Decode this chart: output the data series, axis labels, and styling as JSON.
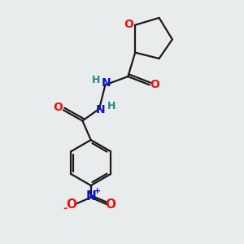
{
  "bg_color": "#e8ecec",
  "bond_color": "#1a1a1a",
  "O_color": "#ee1111",
  "N_color": "#1111cc",
  "H_color": "#228888",
  "line_width": 1.6,
  "fig_size": [
    3.0,
    3.0
  ],
  "dpi": 100,
  "xlim": [
    0,
    10
  ],
  "ylim": [
    0,
    10
  ]
}
